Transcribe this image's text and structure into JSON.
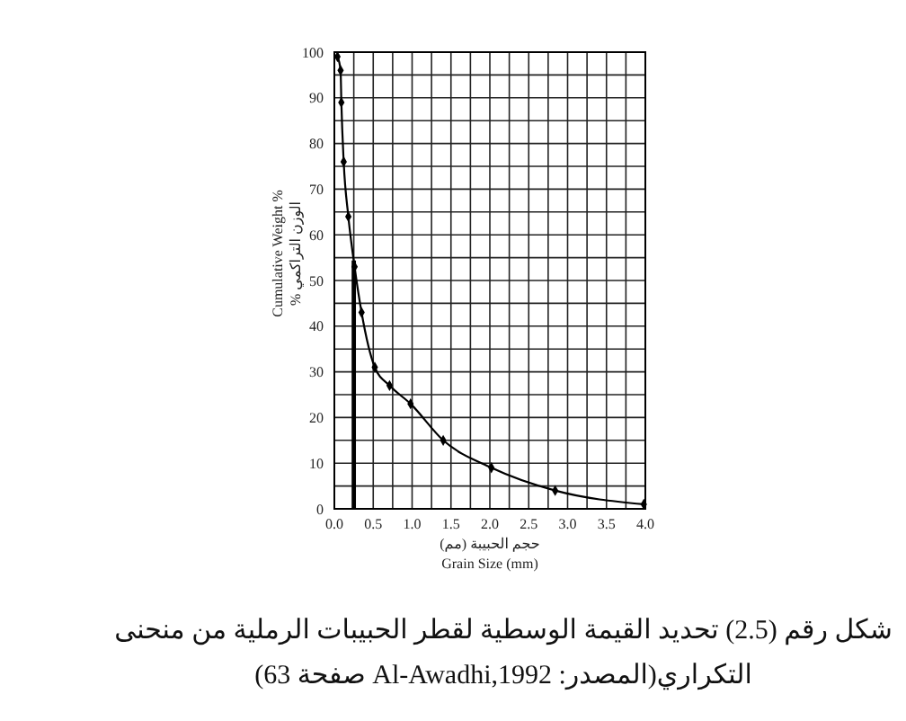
{
  "chart_data": {
    "type": "line",
    "xlabel": "حجم الحبيبة (مم)\nGrain Size (mm)",
    "ylabel": "Cumulative Weight %\nالوزن التراكمي %",
    "annotations": [
      "شكل رقم (2.5) تحديد القيمة الوسطية لقطر الحبيبات الرملية من منحنى\nالتكراري(المصدر: Al-Awadhi,1992 صفحة 63)"
    ],
    "x": [
      0.04,
      0.08,
      0.09,
      0.12,
      0.18,
      0.26,
      0.35,
      0.52,
      0.71,
      0.98,
      1.4,
      2.02,
      2.84,
      3.98
    ],
    "values": [
      99,
      96,
      89,
      76,
      64,
      53,
      43,
      31,
      27,
      23,
      15,
      9,
      4,
      1
    ],
    "color": "#000000",
    "marker": "diamond",
    "grid": true,
    "xlim": [
      0,
      4
    ],
    "ylim": [
      0,
      100
    ],
    "xticks": [
      {
        "value": 0,
        "label": "0.0"
      },
      {
        "value": 0.25,
        "label": null
      },
      {
        "value": 0.5,
        "label": "0.5"
      },
      {
        "value": 0.75,
        "label": null
      },
      {
        "value": 1,
        "label": "1.0"
      },
      {
        "value": 1.25,
        "label": null
      },
      {
        "value": 1.5,
        "label": "1.5"
      },
      {
        "value": 1.75,
        "label": null
      },
      {
        "value": 2,
        "label": "2.0"
      },
      {
        "value": 2.25,
        "label": null
      },
      {
        "value": 2.5,
        "label": "2.5"
      },
      {
        "value": 2.75,
        "label": null
      },
      {
        "value": 3,
        "label": "3.0"
      },
      {
        "value": 3.25,
        "label": null
      },
      {
        "value": 3.5,
        "label": "3.5"
      },
      {
        "value": 3.75,
        "label": null
      },
      {
        "value": 4,
        "label": "4.0"
      }
    ],
    "yticks": [
      0,
      {
        "value": 5,
        "label": null
      },
      10,
      {
        "value": 15,
        "label": null
      },
      20,
      {
        "value": 25,
        "label": null
      },
      30,
      {
        "value": 35,
        "label": null
      },
      40,
      {
        "value": 45,
        "label": null
      },
      50,
      {
        "value": 55,
        "label": null
      },
      60,
      {
        "value": 65,
        "label": null
      },
      70,
      {
        "value": 75,
        "label": null
      },
      80,
      {
        "value": 85,
        "label": null
      },
      90,
      {
        "value": 95,
        "label": null
      },
      100
    ],
    "ref_lines": [
      {
        "axis": "x",
        "value": 0.25
      }
    ]
  }
}
